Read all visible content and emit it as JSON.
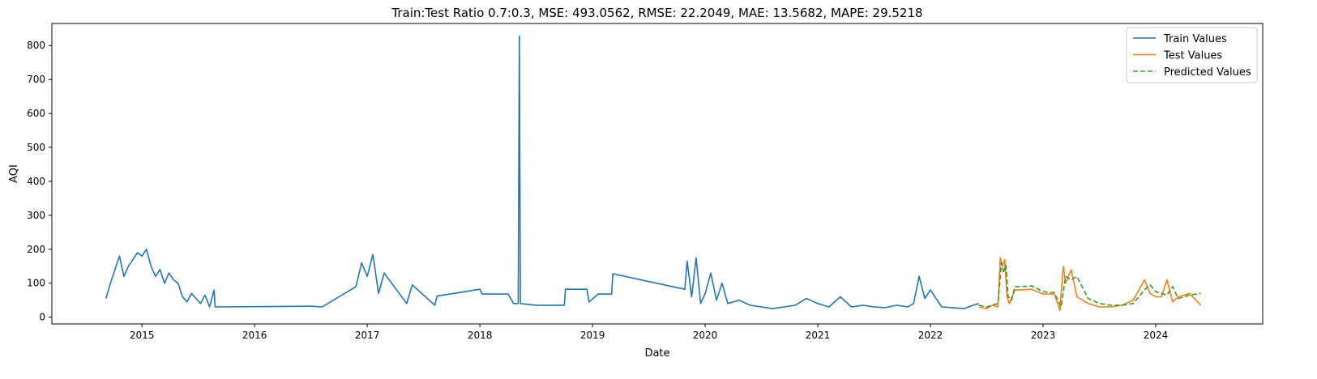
{
  "chart_data": {
    "type": "line",
    "title": "Train:Test Ratio 0.7:0.3, MSE: 493.0562, RMSE: 22.2049, MAE: 13.5682, MAPE: 29.5218",
    "xlabel": "Date",
    "ylabel": "AQI",
    "xlim": [
      2014.2,
      2024.95
    ],
    "ylim": [
      -20,
      865
    ],
    "x_ticks": [
      2015,
      2016,
      2017,
      2018,
      2019,
      2020,
      2021,
      2022,
      2023,
      2024
    ],
    "y_ticks": [
      0,
      100,
      200,
      300,
      400,
      500,
      600,
      700,
      800
    ],
    "grid": false,
    "legend_position": "top-right",
    "series": [
      {
        "name": "Train Values",
        "color": "#1f77b4",
        "style": "solid",
        "x": [
          2014.68,
          2014.72,
          2014.76,
          2014.8,
          2014.84,
          2014.88,
          2014.92,
          2014.96,
          2015.0,
          2015.04,
          2015.08,
          2015.12,
          2015.16,
          2015.2,
          2015.24,
          2015.28,
          2015.32,
          2015.36,
          2015.4,
          2015.44,
          2015.48,
          2015.52,
          2015.56,
          2015.6,
          2015.64,
          2015.65,
          2016.5,
          2016.6,
          2016.9,
          2016.95,
          2017.0,
          2017.05,
          2017.1,
          2017.15,
          2017.35,
          2017.4,
          2017.6,
          2017.62,
          2018.0,
          2018.02,
          2018.25,
          2018.3,
          2018.34,
          2018.35,
          2018.36,
          2018.5,
          2018.75,
          2018.76,
          2018.95,
          2018.97,
          2019.05,
          2019.17,
          2019.18,
          2019.82,
          2019.84,
          2019.88,
          2019.92,
          2019.96,
          2020.0,
          2020.05,
          2020.1,
          2020.15,
          2020.2,
          2020.3,
          2020.4,
          2020.5,
          2020.6,
          2020.7,
          2020.8,
          2020.9,
          2021.0,
          2021.1,
          2021.2,
          2021.3,
          2021.4,
          2021.5,
          2021.6,
          2021.7,
          2021.8,
          2021.85,
          2021.9,
          2021.95,
          2022.0,
          2022.1,
          2022.2,
          2022.3,
          2022.38,
          2022.43
        ],
        "y": [
          55,
          100,
          140,
          180,
          120,
          150,
          170,
          190,
          180,
          200,
          150,
          120,
          140,
          100,
          130,
          110,
          100,
          60,
          45,
          70,
          55,
          40,
          65,
          30,
          80,
          30,
          32,
          30,
          90,
          160,
          120,
          185,
          70,
          130,
          40,
          95,
          35,
          62,
          82,
          68,
          68,
          40,
          40,
          828,
          40,
          35,
          35,
          82,
          82,
          45,
          68,
          68,
          128,
          82,
          165,
          60,
          175,
          40,
          70,
          130,
          50,
          100,
          40,
          50,
          35,
          30,
          25,
          30,
          35,
          55,
          40,
          30,
          60,
          30,
          35,
          30,
          28,
          35,
          30,
          40,
          120,
          55,
          80,
          30,
          28,
          25,
          35,
          40
        ]
      },
      {
        "name": "Test Values",
        "color": "#ff7f0e",
        "style": "solid",
        "x": [
          2022.43,
          2022.5,
          2022.55,
          2022.6,
          2022.62,
          2022.64,
          2022.66,
          2022.68,
          2022.7,
          2022.75,
          2022.8,
          2022.9,
          2023.0,
          2023.1,
          2023.15,
          2023.18,
          2023.2,
          2023.25,
          2023.3,
          2023.4,
          2023.5,
          2023.6,
          2023.7,
          2023.8,
          2023.85,
          2023.9,
          2023.95,
          2024.0,
          2024.05,
          2024.1,
          2024.15,
          2024.2,
          2024.3,
          2024.4
        ],
        "y": [
          30,
          25,
          35,
          30,
          175,
          150,
          170,
          60,
          40,
          80,
          80,
          82,
          68,
          68,
          20,
          150,
          100,
          140,
          60,
          40,
          30,
          30,
          35,
          50,
          80,
          110,
          70,
          60,
          60,
          110,
          45,
          60,
          70,
          35
        ]
      },
      {
        "name": "Predicted Values",
        "color": "#2ca02c",
        "style": "dashed",
        "x": [
          2022.43,
          2022.5,
          2022.55,
          2022.6,
          2022.63,
          2022.65,
          2022.67,
          2022.69,
          2022.72,
          2022.75,
          2022.8,
          2022.9,
          2023.0,
          2023.1,
          2023.16,
          2023.2,
          2023.25,
          2023.3,
          2023.4,
          2023.5,
          2023.6,
          2023.7,
          2023.8,
          2023.85,
          2023.9,
          2023.95,
          2024.0,
          2024.05,
          2024.1,
          2024.15,
          2024.2,
          2024.3,
          2024.4
        ],
        "y": [
          35,
          30,
          35,
          40,
          160,
          130,
          155,
          60,
          50,
          90,
          90,
          92,
          75,
          72,
          30,
          120,
          110,
          120,
          55,
          40,
          35,
          35,
          40,
          60,
          80,
          95,
          75,
          70,
          65,
          90,
          55,
          65,
          70
        ]
      }
    ]
  }
}
